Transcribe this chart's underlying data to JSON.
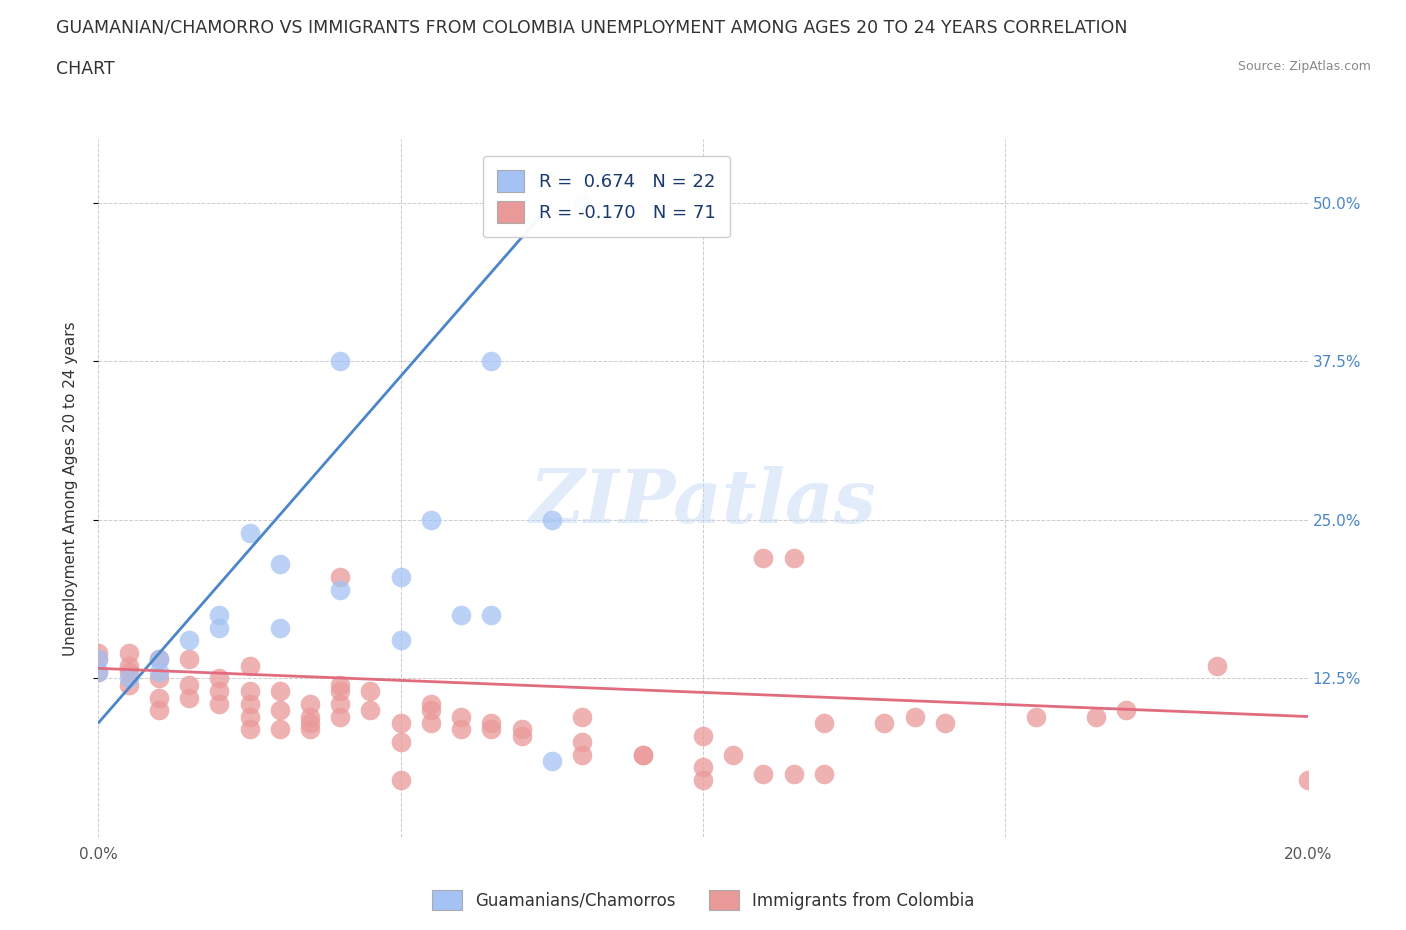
{
  "title_line1": "GUAMANIAN/CHAMORRO VS IMMIGRANTS FROM COLOMBIA UNEMPLOYMENT AMONG AGES 20 TO 24 YEARS CORRELATION",
  "title_line2": "CHART",
  "source": "Source: ZipAtlas.com",
  "ylabel": "Unemployment Among Ages 20 to 24 years",
  "xlim": [
    0.0,
    0.2
  ],
  "ylim": [
    0.0,
    0.55
  ],
  "yticks": [
    0.125,
    0.25,
    0.375,
    0.5
  ],
  "yticklabels": [
    "12.5%",
    "25.0%",
    "37.5%",
    "50.0%"
  ],
  "xticks": [
    0.0,
    0.05,
    0.1,
    0.15,
    0.2
  ],
  "xticklabels": [
    "0.0%",
    "",
    "",
    "",
    "20.0%"
  ],
  "blue_r": 0.674,
  "blue_n": 22,
  "pink_r": -0.17,
  "pink_n": 71,
  "blue_color": "#a4c2f4",
  "pink_color": "#ea9999",
  "blue_line_color": "#4a86c8",
  "pink_line_color": "#e06c7e",
  "watermark": "ZIPatlas",
  "legend_label_blue": "Guamanians/Chamorros",
  "legend_label_pink": "Immigrants from Colombia",
  "blue_points_x": [
    0.0,
    0.0,
    0.005,
    0.01,
    0.01,
    0.015,
    0.02,
    0.02,
    0.025,
    0.03,
    0.03,
    0.04,
    0.04,
    0.05,
    0.05,
    0.055,
    0.06,
    0.065,
    0.065,
    0.075,
    0.08,
    0.075
  ],
  "blue_points_y": [
    0.13,
    0.14,
    0.125,
    0.13,
    0.14,
    0.155,
    0.165,
    0.175,
    0.24,
    0.215,
    0.165,
    0.195,
    0.375,
    0.155,
    0.205,
    0.25,
    0.175,
    0.175,
    0.375,
    0.25,
    0.5,
    0.06
  ],
  "pink_points_x": [
    0.0,
    0.0,
    0.0,
    0.005,
    0.005,
    0.005,
    0.005,
    0.01,
    0.01,
    0.01,
    0.01,
    0.015,
    0.015,
    0.015,
    0.02,
    0.02,
    0.02,
    0.025,
    0.025,
    0.025,
    0.025,
    0.025,
    0.03,
    0.03,
    0.03,
    0.035,
    0.035,
    0.035,
    0.035,
    0.04,
    0.04,
    0.04,
    0.04,
    0.04,
    0.045,
    0.045,
    0.05,
    0.05,
    0.05,
    0.055,
    0.055,
    0.055,
    0.06,
    0.06,
    0.065,
    0.065,
    0.07,
    0.07,
    0.08,
    0.08,
    0.08,
    0.09,
    0.09,
    0.1,
    0.1,
    0.1,
    0.105,
    0.11,
    0.11,
    0.115,
    0.115,
    0.12,
    0.12,
    0.13,
    0.135,
    0.14,
    0.155,
    0.165,
    0.17,
    0.185,
    0.2
  ],
  "pink_points_y": [
    0.13,
    0.14,
    0.145,
    0.12,
    0.13,
    0.135,
    0.145,
    0.1,
    0.11,
    0.125,
    0.14,
    0.11,
    0.12,
    0.14,
    0.105,
    0.115,
    0.125,
    0.085,
    0.095,
    0.105,
    0.115,
    0.135,
    0.085,
    0.1,
    0.115,
    0.085,
    0.09,
    0.095,
    0.105,
    0.095,
    0.105,
    0.115,
    0.12,
    0.205,
    0.1,
    0.115,
    0.045,
    0.075,
    0.09,
    0.09,
    0.1,
    0.105,
    0.085,
    0.095,
    0.085,
    0.09,
    0.08,
    0.085,
    0.065,
    0.075,
    0.095,
    0.065,
    0.065,
    0.045,
    0.055,
    0.08,
    0.065,
    0.05,
    0.22,
    0.05,
    0.22,
    0.05,
    0.09,
    0.09,
    0.095,
    0.09,
    0.095,
    0.095,
    0.1,
    0.135,
    0.045
  ],
  "blue_line_x": [
    0.0,
    0.075
  ],
  "blue_line_y": [
    0.09,
    0.5
  ],
  "pink_line_x": [
    0.0,
    0.2
  ],
  "pink_line_y": [
    0.133,
    0.095
  ]
}
